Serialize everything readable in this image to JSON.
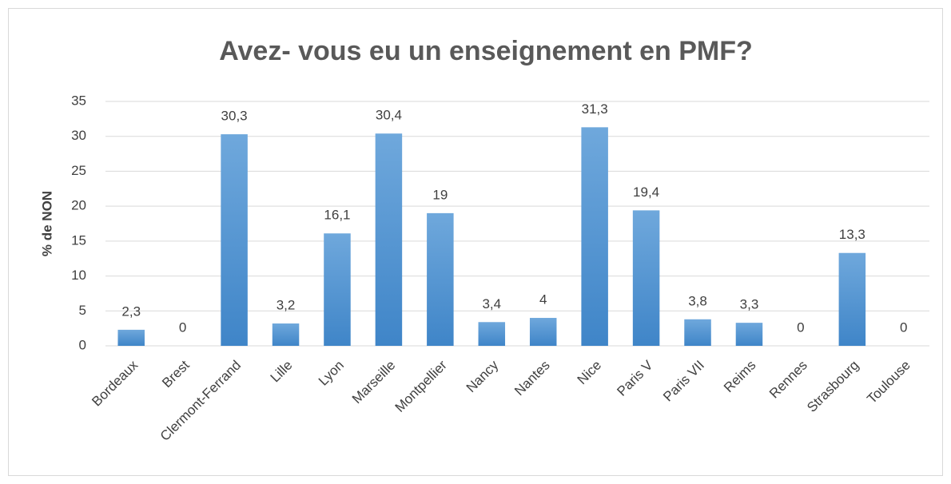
{
  "chart_data": {
    "type": "bar",
    "title": "Avez- vous eu un enseignement en PMF?",
    "y_label": "% de NON",
    "categories": [
      "Bordeaux",
      "Brest",
      "Clermont-Ferrand",
      "Lille",
      "Lyon",
      "Marseille",
      "Montpellier",
      "Nancy",
      "Nantes",
      "Nice",
      "Paris V",
      "Paris VII",
      "Reims",
      "Rennes",
      "Strasbourg",
      "Toulouse"
    ],
    "values": [
      2.3,
      0,
      30.3,
      3.2,
      16.1,
      30.4,
      19,
      3.4,
      4,
      31.3,
      19.4,
      3.8,
      3.3,
      0,
      13.3,
      0
    ],
    "value_labels": [
      "2,3",
      "0",
      "30,3",
      "3,2",
      "16,1",
      "30,4",
      "19",
      "3,4",
      "4",
      "31,3",
      "19,4",
      "3,8",
      "3,3",
      "0",
      "13,3",
      "0"
    ],
    "color": "#5b9bd5",
    "ylim": [
      0,
      35
    ],
    "yticks": [
      0,
      5,
      10,
      15,
      20,
      25,
      30,
      35
    ],
    "grid": true
  }
}
